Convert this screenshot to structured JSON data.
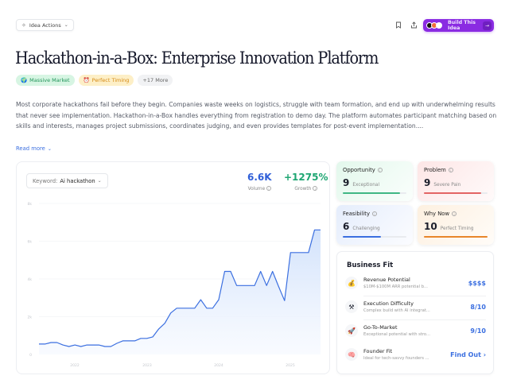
{
  "header": {
    "idea_actions_label": "Idea Actions",
    "build_button_label": "Build This Idea",
    "build_button_color": "#8a2be2"
  },
  "title": "Hackathon-in-a-Box: Enterprise Innovation Platform",
  "tags": [
    {
      "label": "Massive Market",
      "icon": "globe-icon",
      "color": "#22955a"
    },
    {
      "label": "Perfect Timing",
      "icon": "alarm-clock-icon",
      "color": "#d58a14"
    },
    {
      "label": "+17 More",
      "icon": "",
      "color": "#666666"
    }
  ],
  "description": "Most corporate hackathons fail before they begin. Companies waste weeks on logistics, struggle with team formation, and end up with underwhelming results that never see implementation. Hackathon-in-a-Box handles everything from registration to demo day. The platform automates participant matching based on skills and interests, manages project submissions, coordinates judging, and even provides templates for post-event implementation....",
  "read_more_label": "Read more",
  "trend": {
    "keyword_label": "Keyword:",
    "keyword_value": "Ai hackathon",
    "volume_value": "6.6K",
    "volume_label": "Volume",
    "growth_value": "+1275%",
    "growth_label": "Growth",
    "volume_color": "#2f5fd8",
    "growth_color": "#1ea672"
  },
  "chart_data": {
    "type": "area",
    "title": "",
    "xlabel": "",
    "ylabel": "",
    "ylim": [
      0,
      8000
    ],
    "yticks": [
      "0",
      "2k",
      "4k",
      "6k",
      "8k"
    ],
    "xticks": [
      "2022",
      "2023",
      "2024",
      "2025"
    ],
    "grid": true,
    "legend": "none",
    "series": [
      {
        "name": "Ai hackathon",
        "color": "#3b6fe0",
        "values": [
          550,
          550,
          630,
          630,
          500,
          420,
          500,
          420,
          500,
          500,
          500,
          420,
          420,
          590,
          720,
          720,
          720,
          850,
          850,
          930,
          1350,
          1650,
          2200,
          2450,
          2450,
          2450,
          2450,
          2900,
          2450,
          2450,
          2900,
          4400,
          4400,
          3650,
          3650,
          3650,
          3650,
          4400,
          3650,
          4400,
          3600,
          2850,
          5400,
          5400,
          5400,
          5400,
          6600,
          6600
        ]
      }
    ]
  },
  "scores": [
    {
      "name": "Opportunity",
      "value": "9",
      "label": "Exceptional",
      "fill": 0.9,
      "color": "#3fb784"
    },
    {
      "name": "Problem",
      "value": "9",
      "label": "Severe Pain",
      "fill": 0.9,
      "color": "#e36464"
    },
    {
      "name": "Feasibility",
      "value": "6",
      "label": "Challenging",
      "fill": 0.6,
      "color": "#3b6fe0"
    },
    {
      "name": "Why Now",
      "value": "10",
      "label": "Perfect Timing",
      "fill": 1.0,
      "color": "#e8862a"
    }
  ],
  "business_fit": {
    "title": "Business Fit",
    "items": [
      {
        "icon": "money-bag-icon",
        "glyph": "💰",
        "title": "Revenue Potential",
        "subtitle": "$10M-$100M ARR potential b...",
        "value": "$$$$"
      },
      {
        "icon": "tools-icon",
        "glyph": "⚒",
        "title": "Execution Difficulty",
        "subtitle": "Complex build with AI integrat...",
        "value": "8/10"
      },
      {
        "icon": "rocket-icon",
        "glyph": "🚀",
        "title": "Go-To-Market",
        "subtitle": "Exceptional potential with stro...",
        "value": "9/10"
      },
      {
        "icon": "brain-icon",
        "glyph": "🧠",
        "title": "Founder Fit",
        "subtitle": "Ideal for tech-savvy founders ...",
        "value": "Find Out ›"
      }
    ]
  }
}
